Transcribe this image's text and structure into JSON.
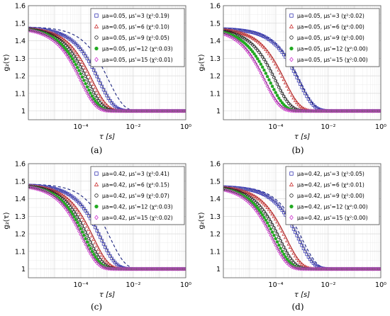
{
  "chart_data": [
    {
      "type": "scatter",
      "caption": "(a)",
      "xlabel": "τ [s]",
      "ylabel": "g₂(τ)",
      "xscale": "log",
      "xlim": [
        1e-06,
        1
      ],
      "ylim": [
        0.95,
        1.6
      ],
      "xticks": [
        "10⁻⁴",
        "10⁻²",
        "10⁰"
      ],
      "yticks": [
        "1",
        "1.1",
        "1.2",
        "1.3",
        "1.4",
        "1.5",
        "1.6"
      ],
      "grid": true,
      "legend_position": "top-right",
      "plateau": 1.475,
      "series": [
        {
          "name": "μa=0.05, μs'=3 (χ²:0.19)",
          "marker": "square",
          "color": "#3b3bb3",
          "tau_half": 0.0003
        },
        {
          "name": "μa=0.05, μs'=6 (χ²:0.10)",
          "marker": "triangle",
          "color": "#cc3333",
          "tau_half": 0.00016
        },
        {
          "name": "μa=0.05, μs'=9 (χ²:0.05)",
          "marker": "circle",
          "color": "#222222",
          "tau_half": 0.00011
        },
        {
          "name": "μa=0.05, μs'=12 (χ²:0.03)",
          "marker": "star",
          "color": "#22aa22",
          "tau_half": 8e-05
        },
        {
          "name": "μa=0.05, μs'=15 (χ²:0.01)",
          "marker": "diamond",
          "color": "#cc33cc",
          "tau_half": 6e-05
        }
      ],
      "dashed_reference": {
        "color": "#1a237e",
        "tau_half": 0.0007
      }
    },
    {
      "type": "scatter",
      "caption": "(b)",
      "xlabel": "τ [s]",
      "ylabel": "g₂(τ)",
      "xscale": "log",
      "xlim": [
        1e-06,
        1
      ],
      "ylim": [
        0.95,
        1.6
      ],
      "xticks": [
        "10⁻⁴",
        "10⁻²",
        "10⁰"
      ],
      "yticks": [
        "1",
        "1.1",
        "1.2",
        "1.3",
        "1.4",
        "1.5",
        "1.6"
      ],
      "grid": true,
      "legend_position": "top-right",
      "plateau": 1.47,
      "series": [
        {
          "name": "μa=0.05, μs'=3 (χ²:0.02)",
          "marker": "square",
          "color": "#3b3bb3",
          "tau_half": 0.00045
        },
        {
          "name": "μa=0.05, μs'=6 (χ²:0.00)",
          "marker": "triangle",
          "color": "#cc3333",
          "tau_half": 0.00013
        },
        {
          "name": "μa=0.05, μs'=9 (χ²:0.00)",
          "marker": "circle",
          "color": "#222222",
          "tau_half": 6e-05
        },
        {
          "name": "μa=0.05, μs'=12 (χ²:0.00)",
          "marker": "star",
          "color": "#22aa22",
          "tau_half": 3.5e-05
        },
        {
          "name": "μa=0.05, μs'=15 (χ²:0.00)",
          "marker": "diamond",
          "color": "#cc33cc",
          "tau_half": 2.3e-05
        }
      ],
      "dashed_reference": {
        "color": "#1a237e",
        "tau_half": 0.0005
      }
    },
    {
      "type": "scatter",
      "caption": "(c)",
      "xlabel": "τ [s]",
      "ylabel": "g₂(τ)",
      "xscale": "log",
      "xlim": [
        1e-06,
        1
      ],
      "ylim": [
        0.95,
        1.6
      ],
      "xticks": [
        "10⁻⁴",
        "10⁻²",
        "10⁰"
      ],
      "yticks": [
        "1",
        "1.1",
        "1.2",
        "1.3",
        "1.4",
        "1.5",
        "1.6"
      ],
      "grid": true,
      "legend_position": "top-right",
      "plateau": 1.48,
      "series": [
        {
          "name": "μa=0.42, μs'=3 (χ²:0.41)",
          "marker": "square",
          "color": "#3b3bb3",
          "tau_half": 0.00035
        },
        {
          "name": "μa=0.42, μs'=6 (χ²:0.15)",
          "marker": "triangle",
          "color": "#cc3333",
          "tau_half": 0.00018
        },
        {
          "name": "μa=0.42, μs'=9 (χ²:0.07)",
          "marker": "circle",
          "color": "#222222",
          "tau_half": 0.00012
        },
        {
          "name": "μa=0.42, μs'=12 (χ²:0.03)",
          "marker": "star",
          "color": "#22aa22",
          "tau_half": 9e-05
        },
        {
          "name": "μa=0.42, μs'=15 (χ²:0.02)",
          "marker": "diamond",
          "color": "#cc33cc",
          "tau_half": 7e-05
        }
      ],
      "dashed_reference": {
        "color": "#1a237e",
        "tau_half": 0.0008
      }
    },
    {
      "type": "scatter",
      "caption": "(d)",
      "xlabel": "τ [s]",
      "ylabel": "g₂(τ)",
      "xscale": "log",
      "xlim": [
        1e-06,
        1
      ],
      "ylim": [
        0.95,
        1.6
      ],
      "xticks": [
        "10⁻⁴",
        "10⁻²",
        "10⁰"
      ],
      "yticks": [
        "1",
        "1.1",
        "1.2",
        "1.3",
        "1.4",
        "1.5",
        "1.6"
      ],
      "grid": true,
      "legend_position": "top-right",
      "plateau": 1.47,
      "series": [
        {
          "name": "μa=0.42, μs'=3 (χ²:0.05)",
          "marker": "square",
          "color": "#3b3bb3",
          "tau_half": 0.00045
        },
        {
          "name": "μa=0.42, μs'=6 (χ²:0.01)",
          "marker": "triangle",
          "color": "#cc3333",
          "tau_half": 0.00015
        },
        {
          "name": "μa=0.42, μs'=9 (χ²:0.00)",
          "marker": "circle",
          "color": "#222222",
          "tau_half": 8.5e-05
        },
        {
          "name": "μa=0.42, μs'=12 (χ²:0.00)",
          "marker": "star",
          "color": "#22aa22",
          "tau_half": 6e-05
        },
        {
          "name": "μa=0.42, μs'=15 (χ²:0.00)",
          "marker": "diamond",
          "color": "#cc33cc",
          "tau_half": 4.5e-05
        }
      ],
      "dashed_reference": {
        "color": "#1a237e",
        "tau_half": 0.0006
      }
    }
  ]
}
